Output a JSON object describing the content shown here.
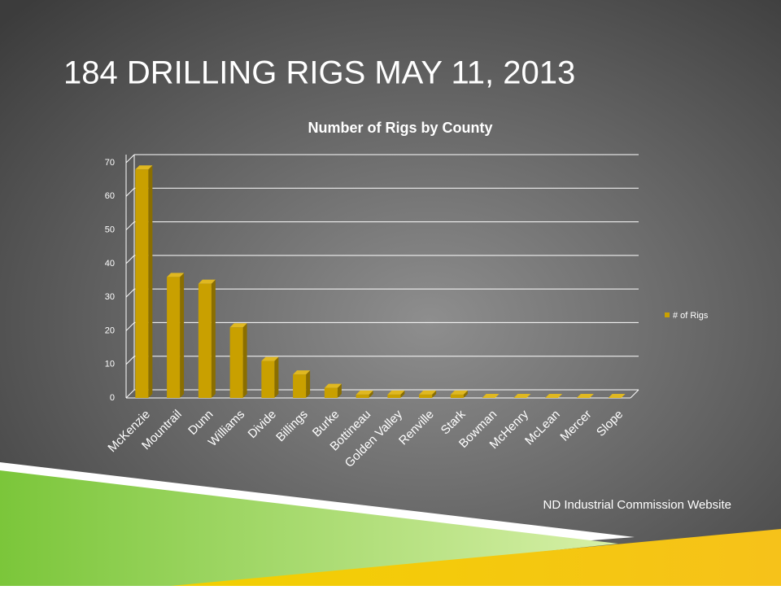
{
  "slide": {
    "title": "184 DRILLING RIGS MAY 11, 2013",
    "source": "ND Industrial Commission Website"
  },
  "chart_data": {
    "type": "bar",
    "title": "Number of Rigs by County",
    "categories": [
      "McKenzie",
      "Mountrail",
      "Dunn",
      "Williams",
      "Divide",
      "Billings",
      "Burke",
      "Bottineau",
      "Golden Valley",
      "Renville",
      "Stark",
      "Bowman",
      "McHenry",
      "McLean",
      "Mercer",
      "Slope"
    ],
    "series": [
      {
        "name": "# of Rigs",
        "color": "#c9a000",
        "values": [
          68,
          36,
          34,
          21,
          11,
          7,
          3,
          1,
          1,
          1,
          1,
          0,
          0,
          0,
          0,
          0
        ]
      }
    ],
    "ylim": [
      0,
      70
    ],
    "yticks": [
      0,
      10,
      20,
      30,
      40,
      50,
      60,
      70
    ],
    "grid": true,
    "legend": "right"
  }
}
